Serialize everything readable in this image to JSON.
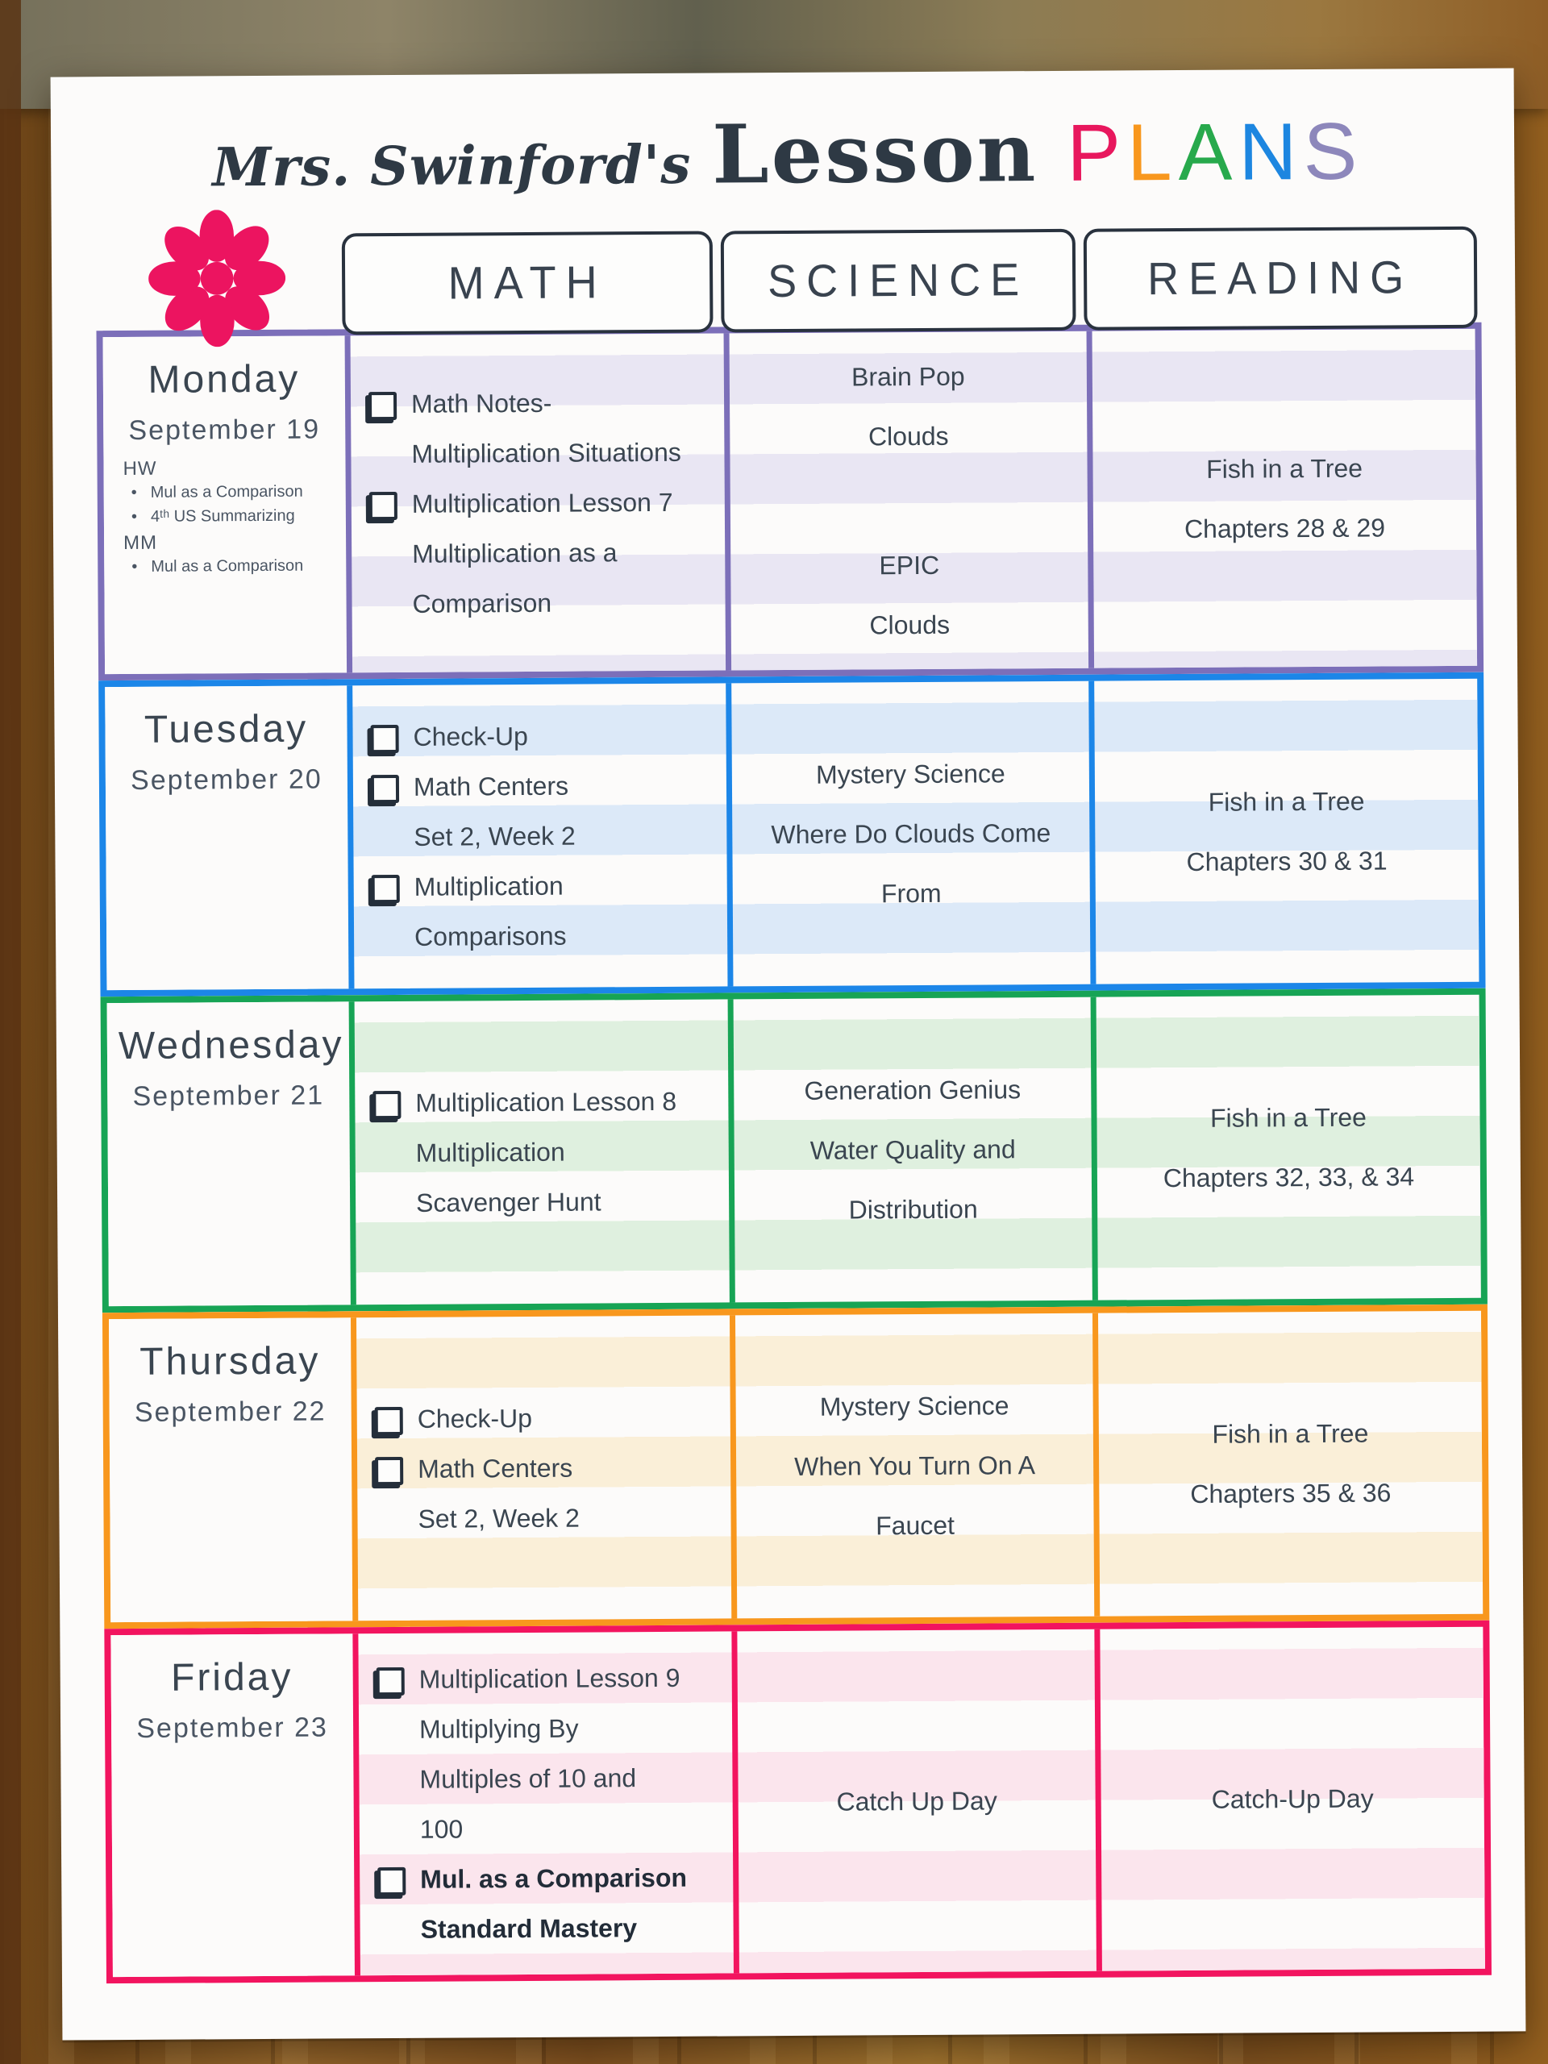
{
  "title": {
    "script": "Mrs. Swinford's",
    "main": "Lesson",
    "plans": [
      {
        "char": "P",
        "color": "#E8175D"
      },
      {
        "char": "L",
        "color": "#F8971D"
      },
      {
        "char": "A",
        "color": "#27A94C"
      },
      {
        "char": "N",
        "color": "#1D86E0"
      },
      {
        "char": "S",
        "color": "#8D87BB"
      }
    ]
  },
  "flower_color": "#EC1460",
  "columns": [
    "MATH",
    "SCIENCE",
    "READING"
  ],
  "days": [
    {
      "name": "Monday",
      "date": "September 19",
      "border": "#7C6FB9",
      "stripe": "#E9E6F3",
      "notes": [
        {
          "label": "HW",
          "items": [
            "Mul as a Comparison",
            "4ᵗʰ US Summarizing"
          ]
        },
        {
          "label": "MM",
          "items": [
            "Mul as a Comparison"
          ]
        }
      ],
      "math": [
        {
          "lines": [
            "Math Notes-",
            "Multiplication Situations"
          ]
        },
        {
          "lines": [
            "Multiplication Lesson 7",
            "Multiplication as a",
            "Comparison"
          ]
        }
      ],
      "science": [
        "Brain Pop",
        "Clouds",
        "",
        "EPIC",
        "Clouds"
      ],
      "reading": [
        "Fish in a Tree",
        "Chapters 28 & 29"
      ]
    },
    {
      "name": "Tuesday",
      "date": "September 20",
      "border": "#1C86E8",
      "stripe": "#DCE9F8",
      "math": [
        {
          "lines": [
            "Check-Up"
          ]
        },
        {
          "lines": [
            "Math Centers",
            "Set 2, Week 2"
          ]
        },
        {
          "lines": [
            "Multiplication",
            "Comparisons"
          ]
        }
      ],
      "science": [
        "Mystery Science",
        "Where Do Clouds Come",
        "From"
      ],
      "reading": [
        "Fish in a Tree",
        "Chapters 30 & 31"
      ]
    },
    {
      "name": "Wednesday",
      "date": "September 21",
      "border": "#17A455",
      "stripe": "#DFF0DF",
      "math": [
        {
          "lines": [
            "Multiplication Lesson 8",
            "Multiplication",
            "Scavenger Hunt"
          ]
        }
      ],
      "science": [
        "Generation Genius",
        "Water Quality and",
        "Distribution"
      ],
      "reading": [
        "Fish in a Tree",
        "Chapters 32, 33, & 34"
      ]
    },
    {
      "name": "Thursday",
      "date": "September 22",
      "border": "#F8971D",
      "stripe": "#FAEFD8",
      "math": [
        {
          "lines": [
            "Check-Up"
          ]
        },
        {
          "lines": [
            "Math Centers",
            "Set 2, Week 2"
          ]
        }
      ],
      "science": [
        "Mystery Science",
        "When You Turn On A",
        "Faucet"
      ],
      "reading": [
        "Fish in a Tree",
        "Chapters 35 & 36"
      ]
    },
    {
      "name": "Friday",
      "date": "September 23",
      "border": "#F2145F",
      "stripe": "#FBE5ED",
      "math": [
        {
          "lines": [
            "Multiplication Lesson 9",
            "Multiplying By",
            "Multiples of 10 and",
            "100"
          ]
        },
        {
          "bold": true,
          "lines": [
            "Mul. as a Comparison",
            "Standard Mastery"
          ]
        }
      ],
      "science": [
        "Catch Up Day"
      ],
      "reading": [
        "Catch-Up Day"
      ]
    }
  ]
}
